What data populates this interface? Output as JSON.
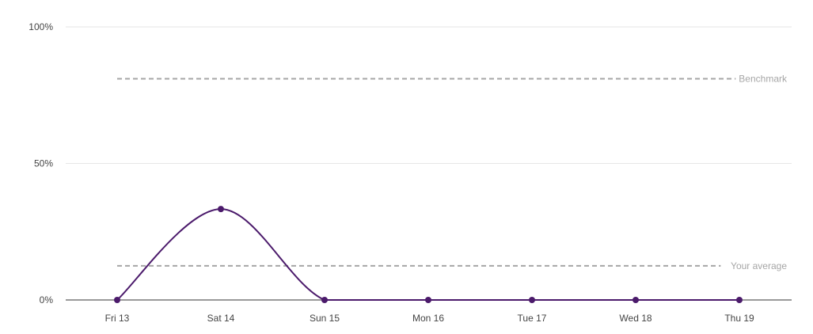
{
  "chart_data": {
    "type": "line",
    "title": "",
    "xlabel": "",
    "ylabel": "",
    "categories": [
      "Fri 13",
      "Sat 14",
      "Sun 15",
      "Mon 16",
      "Tue 17",
      "Wed 18",
      "Thu 19"
    ],
    "series": [
      {
        "values": [
          0,
          33.3,
          0,
          0,
          0,
          0,
          0
        ],
        "color": "#4b1a6b"
      }
    ],
    "ylim": [
      0,
      100
    ],
    "y_ticks": [
      0,
      50,
      100
    ],
    "y_tick_labels": [
      "0%",
      "50%",
      "100%"
    ],
    "reference_lines": [
      {
        "label": "Benchmark",
        "value": 81
      },
      {
        "label": "Your average",
        "value": 12.5
      }
    ],
    "grid": true,
    "legend": "none",
    "colors": {
      "line": "#4b1a6b",
      "reference": "#a6a6a6",
      "grid": "#e6e6e6",
      "axis": "#333333"
    }
  }
}
